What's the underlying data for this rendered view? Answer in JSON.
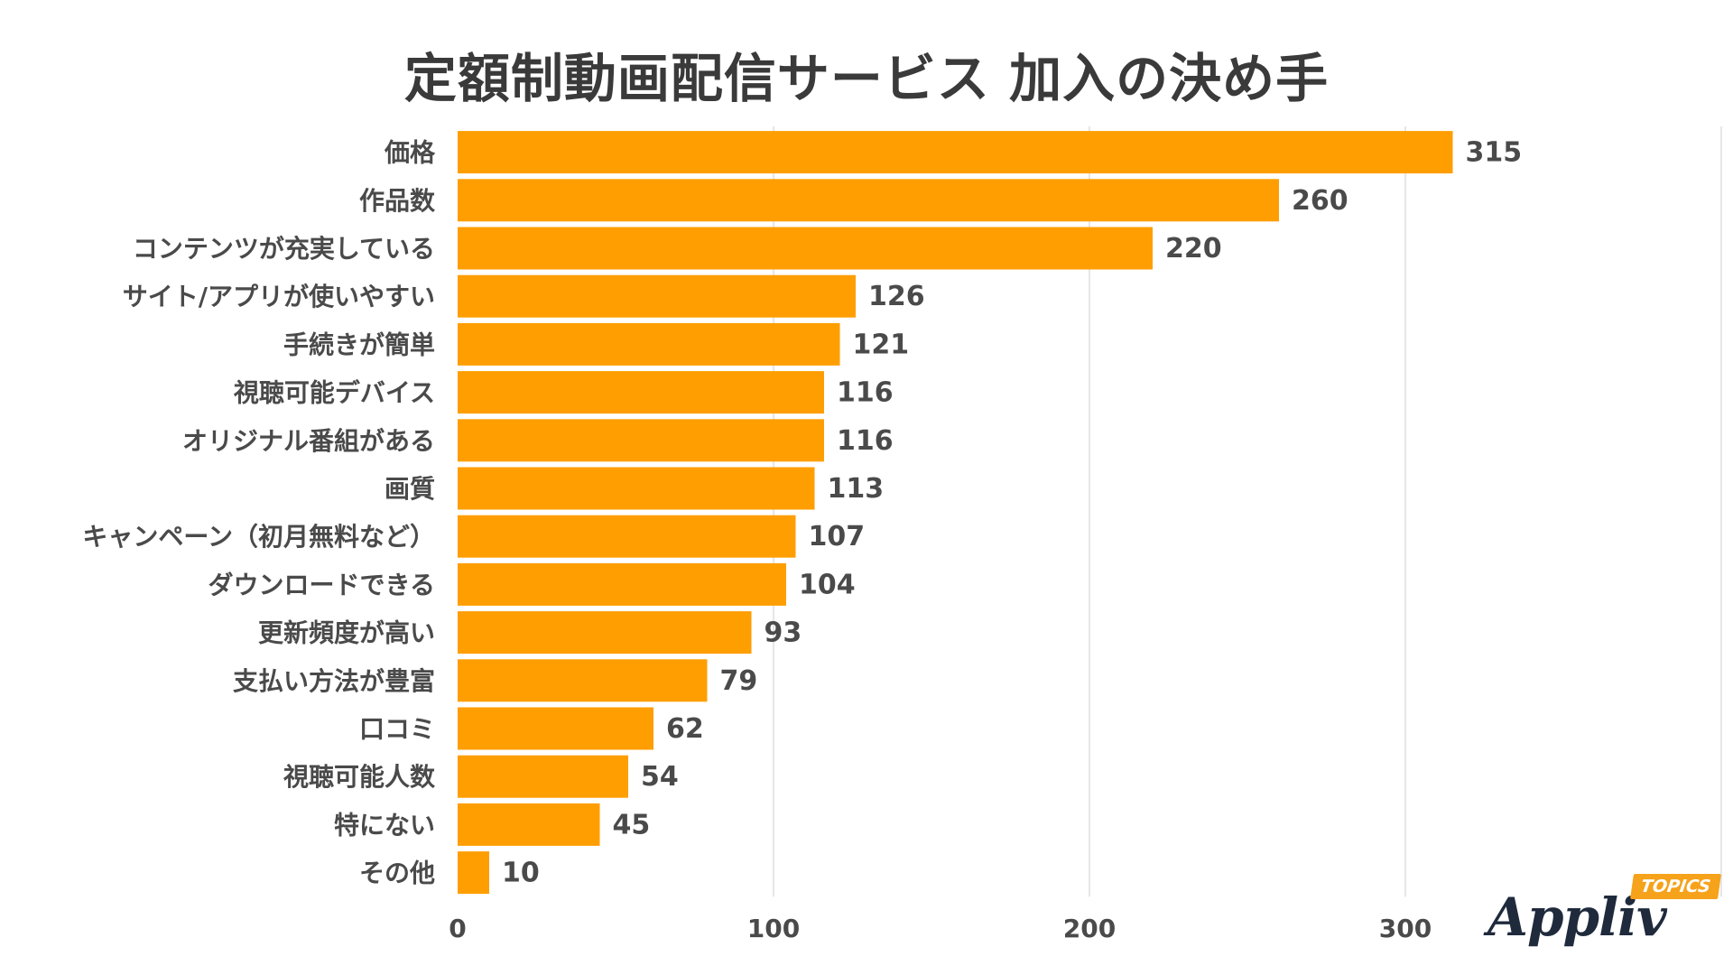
{
  "colors": {
    "bar": "#FF9E00",
    "text": "#4a4a4a",
    "grid": "#dddddd"
  },
  "chart_data": {
    "type": "bar",
    "orientation": "horizontal",
    "title": "定額制動画配信サービス 加入の決め手",
    "categories": [
      "価格",
      "作品数",
      "コンテンツが充実している",
      "サイト/アプリが使いやすい",
      "手続きが簡単",
      "視聴可能デバイス",
      "オリジナル番組がある",
      "画質",
      "キャンペーン（初月無料など）",
      "ダウンロードできる",
      "更新頻度が高い",
      "支払い方法が豊富",
      "口コミ",
      "視聴可能人数",
      "特にない",
      "その他"
    ],
    "values": [
      315,
      260,
      220,
      126,
      121,
      116,
      116,
      113,
      107,
      104,
      93,
      79,
      62,
      54,
      45,
      10
    ],
    "xlim": [
      0,
      400
    ],
    "xticks": [
      0,
      100,
      200,
      300
    ],
    "grid": true,
    "xlabel": "",
    "ylabel": ""
  },
  "logo": {
    "name": "Appliv",
    "tag": "TOPICS"
  }
}
